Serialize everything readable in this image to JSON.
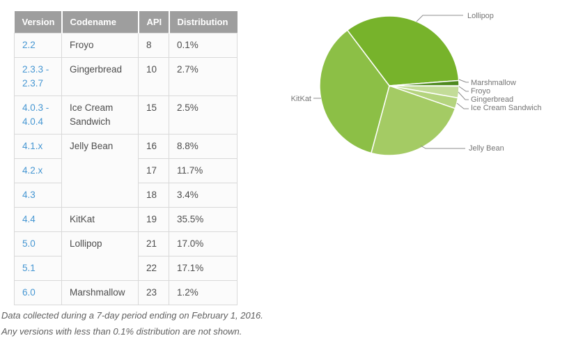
{
  "table": {
    "headers": [
      "Version",
      "Codename",
      "API",
      "Distribution"
    ],
    "rows": [
      {
        "version": "2.2",
        "codename": "Froyo",
        "api": "8",
        "distribution": "0.1%"
      },
      {
        "version": "2.3.3 - 2.3.7",
        "codename": "Gingerbread",
        "api": "10",
        "distribution": "2.7%"
      },
      {
        "version": "4.0.3 - 4.0.4",
        "codename": "Ice Cream Sandwich",
        "api": "15",
        "distribution": "2.5%"
      },
      {
        "version": "4.1.x",
        "codename": "Jelly Bean",
        "api": "16",
        "distribution": "8.8%"
      },
      {
        "version": "4.2.x",
        "codename": "",
        "api": "17",
        "distribution": "11.7%"
      },
      {
        "version": "4.3",
        "codename": "",
        "api": "18",
        "distribution": "3.4%"
      },
      {
        "version": "4.4",
        "codename": "KitKat",
        "api": "19",
        "distribution": "35.5%"
      },
      {
        "version": "5.0",
        "codename": "Lollipop",
        "api": "21",
        "distribution": "17.0%"
      },
      {
        "version": "5.1",
        "codename": "",
        "api": "22",
        "distribution": "17.1%"
      },
      {
        "version": "6.0",
        "codename": "Marshmallow",
        "api": "23",
        "distribution": "1.2%"
      }
    ]
  },
  "footnote": {
    "line1": "Data collected during a 7-day period ending on February 1, 2016.",
    "line2": "Any versions with less than 0.1% distribution are not shown."
  },
  "chart_data": {
    "type": "pie",
    "start_angle_deg": 0,
    "direction": "clockwise",
    "legend_position": "outside-callouts",
    "slices": [
      {
        "label": "Froyo",
        "value": 0.1,
        "color": "#d2e5b0"
      },
      {
        "label": "Gingerbread",
        "value": 2.7,
        "color": "#c3dc98"
      },
      {
        "label": "Ice Cream Sandwich",
        "value": 2.5,
        "color": "#b4d47e"
      },
      {
        "label": "Jelly Bean",
        "value": 23.9,
        "color": "#a4cb64"
      },
      {
        "label": "KitKat",
        "value": 35.5,
        "color": "#8cbf46"
      },
      {
        "label": "Lollipop",
        "value": 34.1,
        "color": "#77b32b"
      },
      {
        "label": "Marshmallow",
        "value": 1.2,
        "color": "#4e8a1e"
      }
    ]
  }
}
